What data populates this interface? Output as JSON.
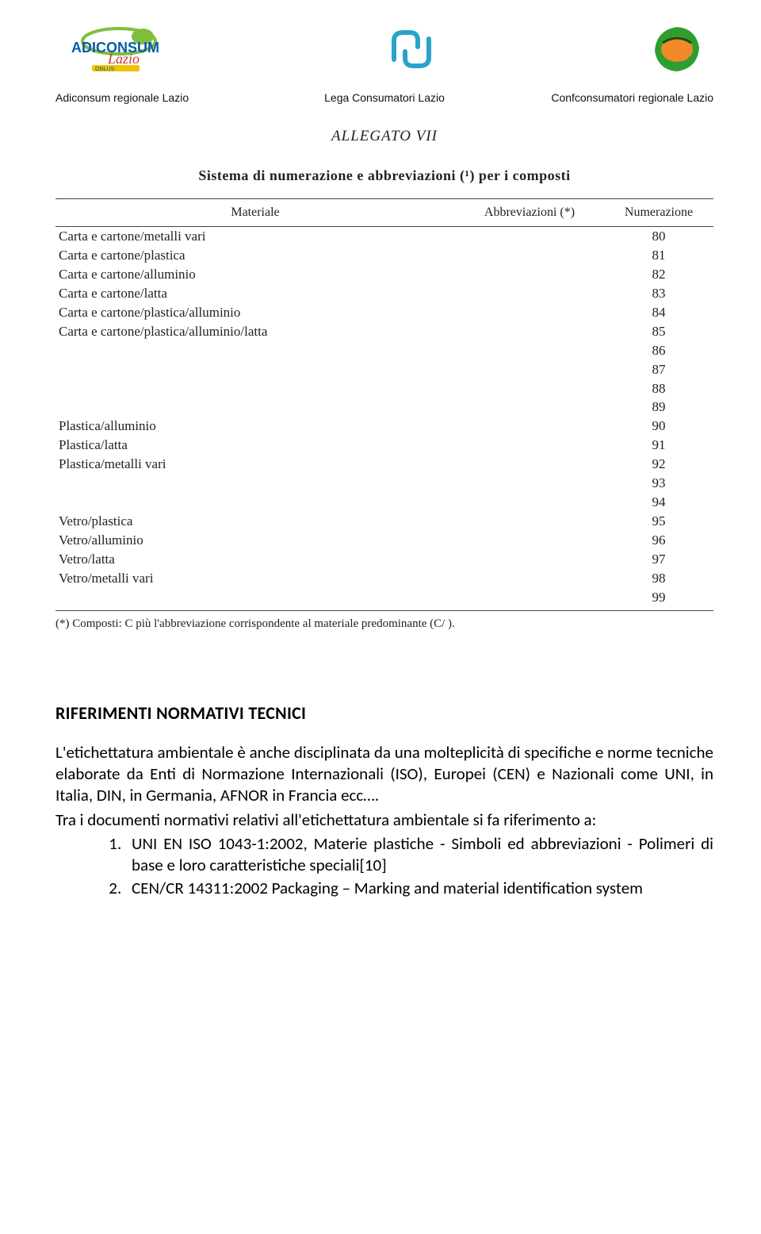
{
  "header": {
    "captions": [
      "Adiconsum regionale Lazio",
      "Lega Consumatori Lazio",
      "Confconsumatori regionale Lazio"
    ],
    "logos": {
      "adiconsum": {
        "primary": "#0a5aa6",
        "accent": "#7fbf3f",
        "script": "#c43a2f"
      },
      "lega": {
        "stroke": "#2aa3c9"
      },
      "conf": {
        "leaf": "#2e9e2e",
        "fruit": "#f08a2a"
      }
    }
  },
  "scan": {
    "allegato": "ALLEGATO VII",
    "title": "Sistema di numerazione e abbreviazioni (¹) per i composti",
    "columns": [
      "Materiale",
      "Abbreviazioni (*)",
      "Numerazione"
    ],
    "rows": [
      {
        "material": "Carta e cartone/metalli vari",
        "abbr": "",
        "num": "80"
      },
      {
        "material": "Carta e cartone/plastica",
        "abbr": "",
        "num": "81"
      },
      {
        "material": "Carta e cartone/alluminio",
        "abbr": "",
        "num": "82"
      },
      {
        "material": "Carta e cartone/latta",
        "abbr": "",
        "num": "83"
      },
      {
        "material": "Carta e cartone/plastica/alluminio",
        "abbr": "",
        "num": "84"
      },
      {
        "material": "Carta e cartone/plastica/alluminio/latta",
        "abbr": "",
        "num": "85"
      },
      {
        "material": "",
        "abbr": "",
        "num": "86"
      },
      {
        "material": "",
        "abbr": "",
        "num": "87"
      },
      {
        "material": "",
        "abbr": "",
        "num": "88"
      },
      {
        "material": "",
        "abbr": "",
        "num": "89"
      },
      {
        "material": "Plastica/alluminio",
        "abbr": "",
        "num": "90"
      },
      {
        "material": "Plastica/latta",
        "abbr": "",
        "num": "91"
      },
      {
        "material": "Plastica/metalli vari",
        "abbr": "",
        "num": "92"
      },
      {
        "material": "",
        "abbr": "",
        "num": "93"
      },
      {
        "material": "",
        "abbr": "",
        "num": "94"
      },
      {
        "material": "Vetro/plastica",
        "abbr": "",
        "num": "95"
      },
      {
        "material": "Vetro/alluminio",
        "abbr": "",
        "num": "96"
      },
      {
        "material": "Vetro/latta",
        "abbr": "",
        "num": "97"
      },
      {
        "material": "Vetro/metalli vari",
        "abbr": "",
        "num": "98"
      },
      {
        "material": "",
        "abbr": "",
        "num": "99"
      }
    ],
    "footnote": "(*) Composti: C più l'abbreviazione corrispondente al materiale predominante (C/ )."
  },
  "body": {
    "heading": "RIFERIMENTI NORMATIVI TECNICI",
    "paragraph": "L'etichettatura ambientale è anche disciplinata da una molteplicità di specifiche e norme tecniche elaborate da Enti di Normazione Internazionali (ISO), Europei (CEN) e Nazionali come UNI, in Italia, DIN, in Germania, AFNOR in Francia ecc….",
    "lead_in": "Tra i documenti normativi relativi all'etichettatura ambientale si fa riferimento a:",
    "items": [
      "UNI EN ISO 1043-1:2002, Materie plastiche - Simboli ed abbreviazioni - Polimeri di base e loro caratteristiche speciali[10]",
      "CEN/CR 14311:2002 Packaging – Marking and material identification system"
    ]
  }
}
